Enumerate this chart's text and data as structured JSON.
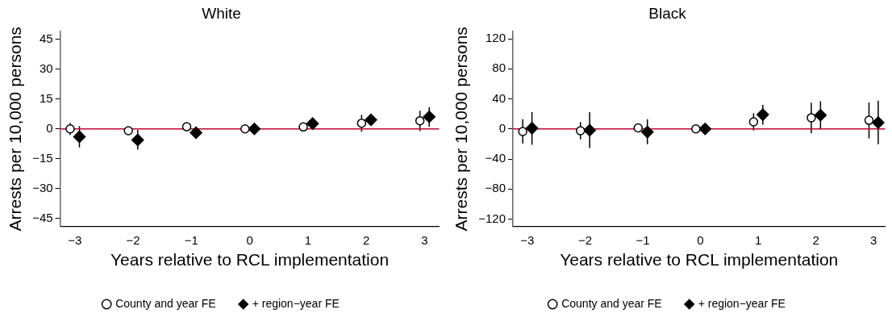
{
  "chart_data": [
    {
      "type": "scatter",
      "title": "White",
      "xlabel": "Years relative to RCL implementation",
      "ylabel": "Arrests per 10,000 persons",
      "xlim": [
        -3.25,
        3.25
      ],
      "xticks": [
        -3,
        -2,
        -1,
        0,
        1,
        2,
        3
      ],
      "ylim": [
        -49,
        49
      ],
      "yticks": [
        -45,
        -30,
        -15,
        0,
        15,
        30,
        45
      ],
      "grid": false,
      "legend": "bottom",
      "ref_lines": [
        {
          "axis": "y",
          "value": 0,
          "color": "#c10534"
        }
      ],
      "series": [
        {
          "name": "County and year FE",
          "color": "#000000",
          "marker": "circle",
          "x": [
            -3.08,
            -2.08,
            -1.08,
            -0.08,
            0.92,
            1.92,
            2.92
          ],
          "values": [
            0,
            -0.9,
            1.1,
            0,
            1,
            2.9,
            4.1
          ],
          "errors": [
            [
              -3,
              3
            ],
            [
              -2.9,
              1.1
            ],
            [
              0.1,
              2.1
            ],
            null,
            [
              -1,
              3
            ],
            [
              -1.4,
              7.1
            ],
            [
              -1.1,
              9.1
            ]
          ]
        },
        {
          "name": "+ region−year FE",
          "color": "#000000",
          "marker": "diamond",
          "x": [
            -2.92,
            -1.92,
            -0.92,
            0.08,
            1.08,
            2.08,
            3.08
          ],
          "values": [
            -3.9,
            -5.5,
            -1.9,
            0,
            2.7,
            4.6,
            6.1
          ],
          "errors": [
            [
              -9.3,
              1.4
            ],
            [
              -10.3,
              -0.5
            ],
            [
              -4.7,
              0.9
            ],
            null,
            [
              1.5,
              3.9
            ],
            [
              3.5,
              5.7
            ],
            [
              1.1,
              11
            ]
          ]
        }
      ]
    },
    {
      "type": "scatter",
      "title": "Black",
      "xlabel": "Years relative to RCL implementation",
      "ylabel": "Arrests per 10,000 persons",
      "xlim": [
        -3.25,
        3.2
      ],
      "xticks": [
        -3,
        -2,
        -1,
        0,
        1,
        2,
        3
      ],
      "ylim": [
        -130,
        130
      ],
      "yticks": [
        -120,
        -80,
        -40,
        0,
        40,
        80,
        120
      ],
      "grid": false,
      "legend": "bottom",
      "ref_lines": [
        {
          "axis": "y",
          "value": 0,
          "color": "#c10534"
        }
      ],
      "series": [
        {
          "name": "County and year FE",
          "color": "#000000",
          "marker": "circle",
          "x": [
            -3.08,
            -2.08,
            -1.08,
            -0.08,
            0.92,
            1.92,
            2.92
          ],
          "values": [
            -3.4,
            -2.4,
            1.4,
            0,
            9.5,
            14.9,
            11.5
          ],
          "errors": [
            [
              -19.3,
              12.9
            ],
            [
              -13.9,
              9.2
            ],
            [
              -3,
              5
            ],
            null,
            [
              -2,
              21
            ],
            [
              -5.8,
              34.9
            ],
            [
              -12.5,
              35.3
            ]
          ]
        },
        {
          "name": "+ region−year FE",
          "color": "#000000",
          "marker": "diamond",
          "x": [
            -2.92,
            -1.92,
            -0.92,
            0.08,
            1.08,
            2.08,
            3.08
          ],
          "values": [
            1,
            -1.7,
            -4.1,
            0,
            19,
            18.3,
            8.5
          ],
          "errors": [
            [
              -21,
              22.4
            ],
            [
              -25.4,
              22.4
            ],
            [
              -20.3,
              12.9
            ],
            null,
            [
              5.8,
              31.9
            ],
            [
              -0.7,
              37
            ],
            [
              -20.3,
              37.6
            ]
          ]
        }
      ]
    }
  ]
}
